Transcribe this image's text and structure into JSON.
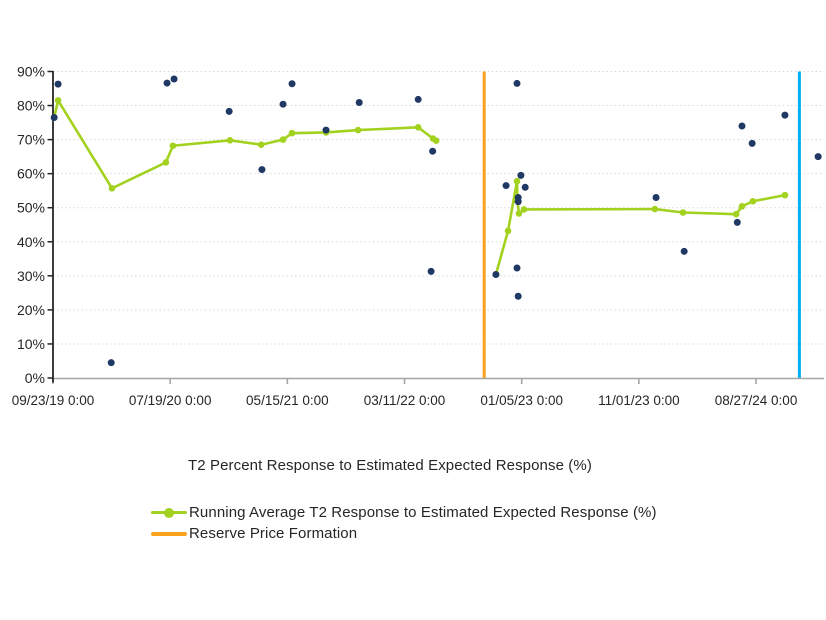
{
  "chart_data": {
    "type": "scatter",
    "title": "T2 Percent Response to Estimated Expected Response (%)",
    "x_axis": {
      "unit": "date",
      "tick_labels": [
        "09/23/19 0:00",
        "07/19/20 0:00",
        "05/15/21 0:00",
        "03/11/22 0:00",
        "01/05/23 0:00",
        "11/01/23 0:00",
        "08/27/24 0:00"
      ],
      "tick_days": [
        0,
        300,
        600,
        900,
        1200,
        1500,
        1800
      ],
      "min_days": 0,
      "max_days": 1974,
      "grid": false
    },
    "y_axis": {
      "min": 0,
      "max": 90,
      "tick_step": 10,
      "tick_labels": [
        "0%",
        "10%",
        "20%",
        "30%",
        "40%",
        "50%",
        "60%",
        "70%",
        "80%",
        "90%"
      ],
      "grid": true
    },
    "series": [
      {
        "name": "T2 Percent Response to Estimated Expected Response (%)",
        "type": "scatter",
        "color": "#1F3864",
        "points": [
          [
            3,
            76.5
          ],
          [
            13,
            86.3
          ],
          [
            149,
            4.5
          ],
          [
            292,
            86.6
          ],
          [
            310,
            87.8
          ],
          [
            451,
            78.3
          ],
          [
            535,
            61.2
          ],
          [
            589,
            80.4
          ],
          [
            612,
            86.4
          ],
          [
            699,
            72.8
          ],
          [
            784,
            80.9
          ],
          [
            935,
            81.8
          ],
          [
            968,
            31.3
          ],
          [
            972,
            66.6
          ],
          [
            1134,
            30.4
          ],
          [
            1160,
            56.5
          ],
          [
            1188,
            86.5
          ],
          [
            1198,
            59.5
          ],
          [
            1209,
            56.0
          ],
          [
            1191,
            53.0
          ],
          [
            1191,
            51.8
          ],
          [
            1188,
            32.3
          ],
          [
            1191,
            24.0
          ],
          [
            1544,
            53.0
          ],
          [
            1616,
            37.2
          ],
          [
            1752,
            45.7
          ],
          [
            1764,
            74.0
          ],
          [
            1790,
            68.9
          ],
          [
            1874,
            77.2
          ],
          [
            1959,
            65.0
          ]
        ]
      },
      {
        "name": "Running Average T2 Response to Estimated Expected Response (%)",
        "type": "line",
        "color": "#A2D21F",
        "segments": [
          [
            [
              3,
              76.5
            ],
            [
              13,
              81.5
            ],
            [
              151,
              55.7
            ],
            [
              289,
              63.3
            ],
            [
              307,
              68.2
            ],
            [
              453,
              69.8
            ],
            [
              533,
              68.5
            ],
            [
              589,
              70.0
            ],
            [
              612,
              71.9
            ],
            [
              699,
              72.1
            ],
            [
              781,
              72.8
            ],
            [
              935,
              73.6
            ],
            [
              973,
              70.3
            ],
            [
              981,
              69.7
            ]
          ],
          [
            [
              1134,
              30.4
            ],
            [
              1165,
              43.2
            ],
            [
              1188,
              57.8
            ],
            [
              1189,
              52.0
            ],
            [
              1193,
              48.3
            ],
            [
              1206,
              49.5
            ],
            [
              1541,
              49.6
            ],
            [
              1613,
              48.6
            ],
            [
              1749,
              48.1
            ],
            [
              1764,
              50.4
            ],
            [
              1792,
              51.9
            ],
            [
              1874,
              53.7
            ]
          ]
        ]
      }
    ],
    "vlines": [
      {
        "label": "Reserve Price Formation",
        "x_days": 1104,
        "color": "#FAA21B"
      },
      {
        "label": "",
        "x_days": 1911,
        "color": "#00B0F0"
      }
    ],
    "colors": {
      "text": "#262626",
      "gridline": "#D9D9D9",
      "x_axis_line": "#A6A6A6",
      "y_axis_line": "#262626"
    }
  },
  "legend": {
    "items": [
      {
        "label": "Running Average T2 Response to Estimated Expected Response (%)",
        "color": "#A2D21F",
        "marker": "line-with-dot"
      },
      {
        "label": "Reserve Price Formation",
        "color": "#FAA21B",
        "marker": "line"
      }
    ]
  }
}
